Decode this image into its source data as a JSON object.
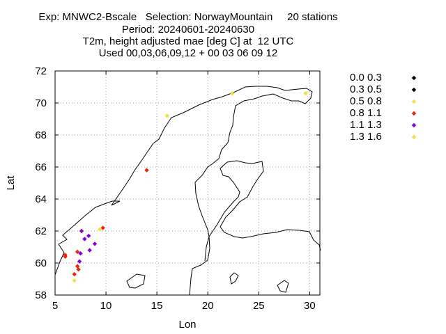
{
  "header": {
    "line1": "Exp: MNWC2-Bscale   Selection: NorwayMountain     20 stations",
    "line2": "Period: 20240601-20240630",
    "line3": "T2m, height adjusted mae [deg C] at  12 UTC",
    "line4": "Used 00,03,06,09,12 + 00 03 06 09 12"
  },
  "chart_data": {
    "type": "scatter",
    "xlabel": "Lon",
    "ylabel": "Lat",
    "xlim": [
      5,
      31
    ],
    "ylim": [
      58,
      72
    ],
    "xticks": [
      5,
      10,
      15,
      20,
      25,
      30
    ],
    "yticks": [
      58,
      60,
      62,
      64,
      66,
      68,
      70,
      72
    ],
    "grid": true,
    "legend_position": "right",
    "classes": [
      {
        "label": "0.0 0.3",
        "color": "#000000"
      },
      {
        "label": "0.3 0.5",
        "color": "#000000"
      },
      {
        "label": "0.5 0.8",
        "color": "#f0e040"
      },
      {
        "label": "0.8 1.1",
        "color": "#e8280a"
      },
      {
        "label": "1.1 1.3",
        "color": "#8b00d8"
      },
      {
        "label": "1.3 1.6",
        "color": "#f0e040"
      }
    ],
    "points": [
      {
        "lon": 16.0,
        "lat": 69.2,
        "cls": 2
      },
      {
        "lon": 22.4,
        "lat": 70.6,
        "cls": 2
      },
      {
        "lon": 29.6,
        "lat": 70.6,
        "cls": 2
      },
      {
        "lon": 14.0,
        "lat": 65.8,
        "cls": 3
      },
      {
        "lon": 9.7,
        "lat": 62.2,
        "cls": 3
      },
      {
        "lon": 9.4,
        "lat": 62.1,
        "cls": 2
      },
      {
        "lon": 7.6,
        "lat": 62.0,
        "cls": 4
      },
      {
        "lon": 8.3,
        "lat": 61.7,
        "cls": 4
      },
      {
        "lon": 7.9,
        "lat": 61.5,
        "cls": 4
      },
      {
        "lon": 8.9,
        "lat": 61.2,
        "cls": 4
      },
      {
        "lon": 8.4,
        "lat": 60.8,
        "cls": 4
      },
      {
        "lon": 7.2,
        "lat": 60.7,
        "cls": 3
      },
      {
        "lon": 7.5,
        "lat": 60.6,
        "cls": 4
      },
      {
        "lon": 6.0,
        "lat": 60.4,
        "cls": 3
      },
      {
        "lon": 7.4,
        "lat": 60.1,
        "cls": 4
      },
      {
        "lon": 7.2,
        "lat": 59.8,
        "cls": 3
      },
      {
        "lon": 7.3,
        "lat": 59.6,
        "cls": 3
      },
      {
        "lon": 6.9,
        "lat": 59.3,
        "cls": 3
      },
      {
        "lon": 6.9,
        "lat": 58.9,
        "cls": 5
      },
      {
        "lon": 6.0,
        "lat": 60.5,
        "cls": 3
      }
    ]
  }
}
